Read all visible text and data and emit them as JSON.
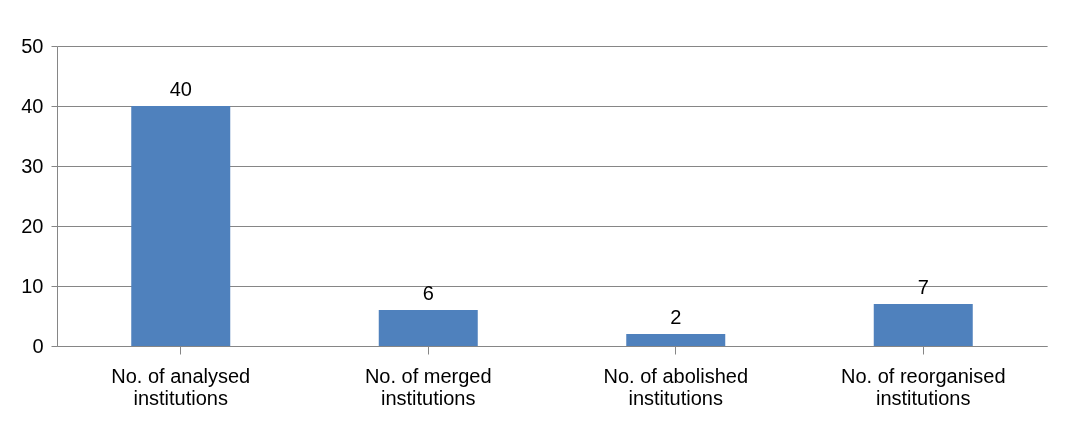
{
  "chart_data": {
    "type": "bar",
    "categories": [
      "No. of analysed\ninstitutions",
      "No. of merged\ninstitutions",
      "No. of abolished\ninstitutions",
      "No. of reorganised\ninstitutions"
    ],
    "values": [
      40,
      6,
      2,
      7
    ],
    "color": "#4f81bd",
    "ylim": [
      0,
      50
    ],
    "yticks": [
      0,
      10,
      20,
      30,
      40,
      50
    ],
    "grid": "y",
    "data_labels": true
  }
}
